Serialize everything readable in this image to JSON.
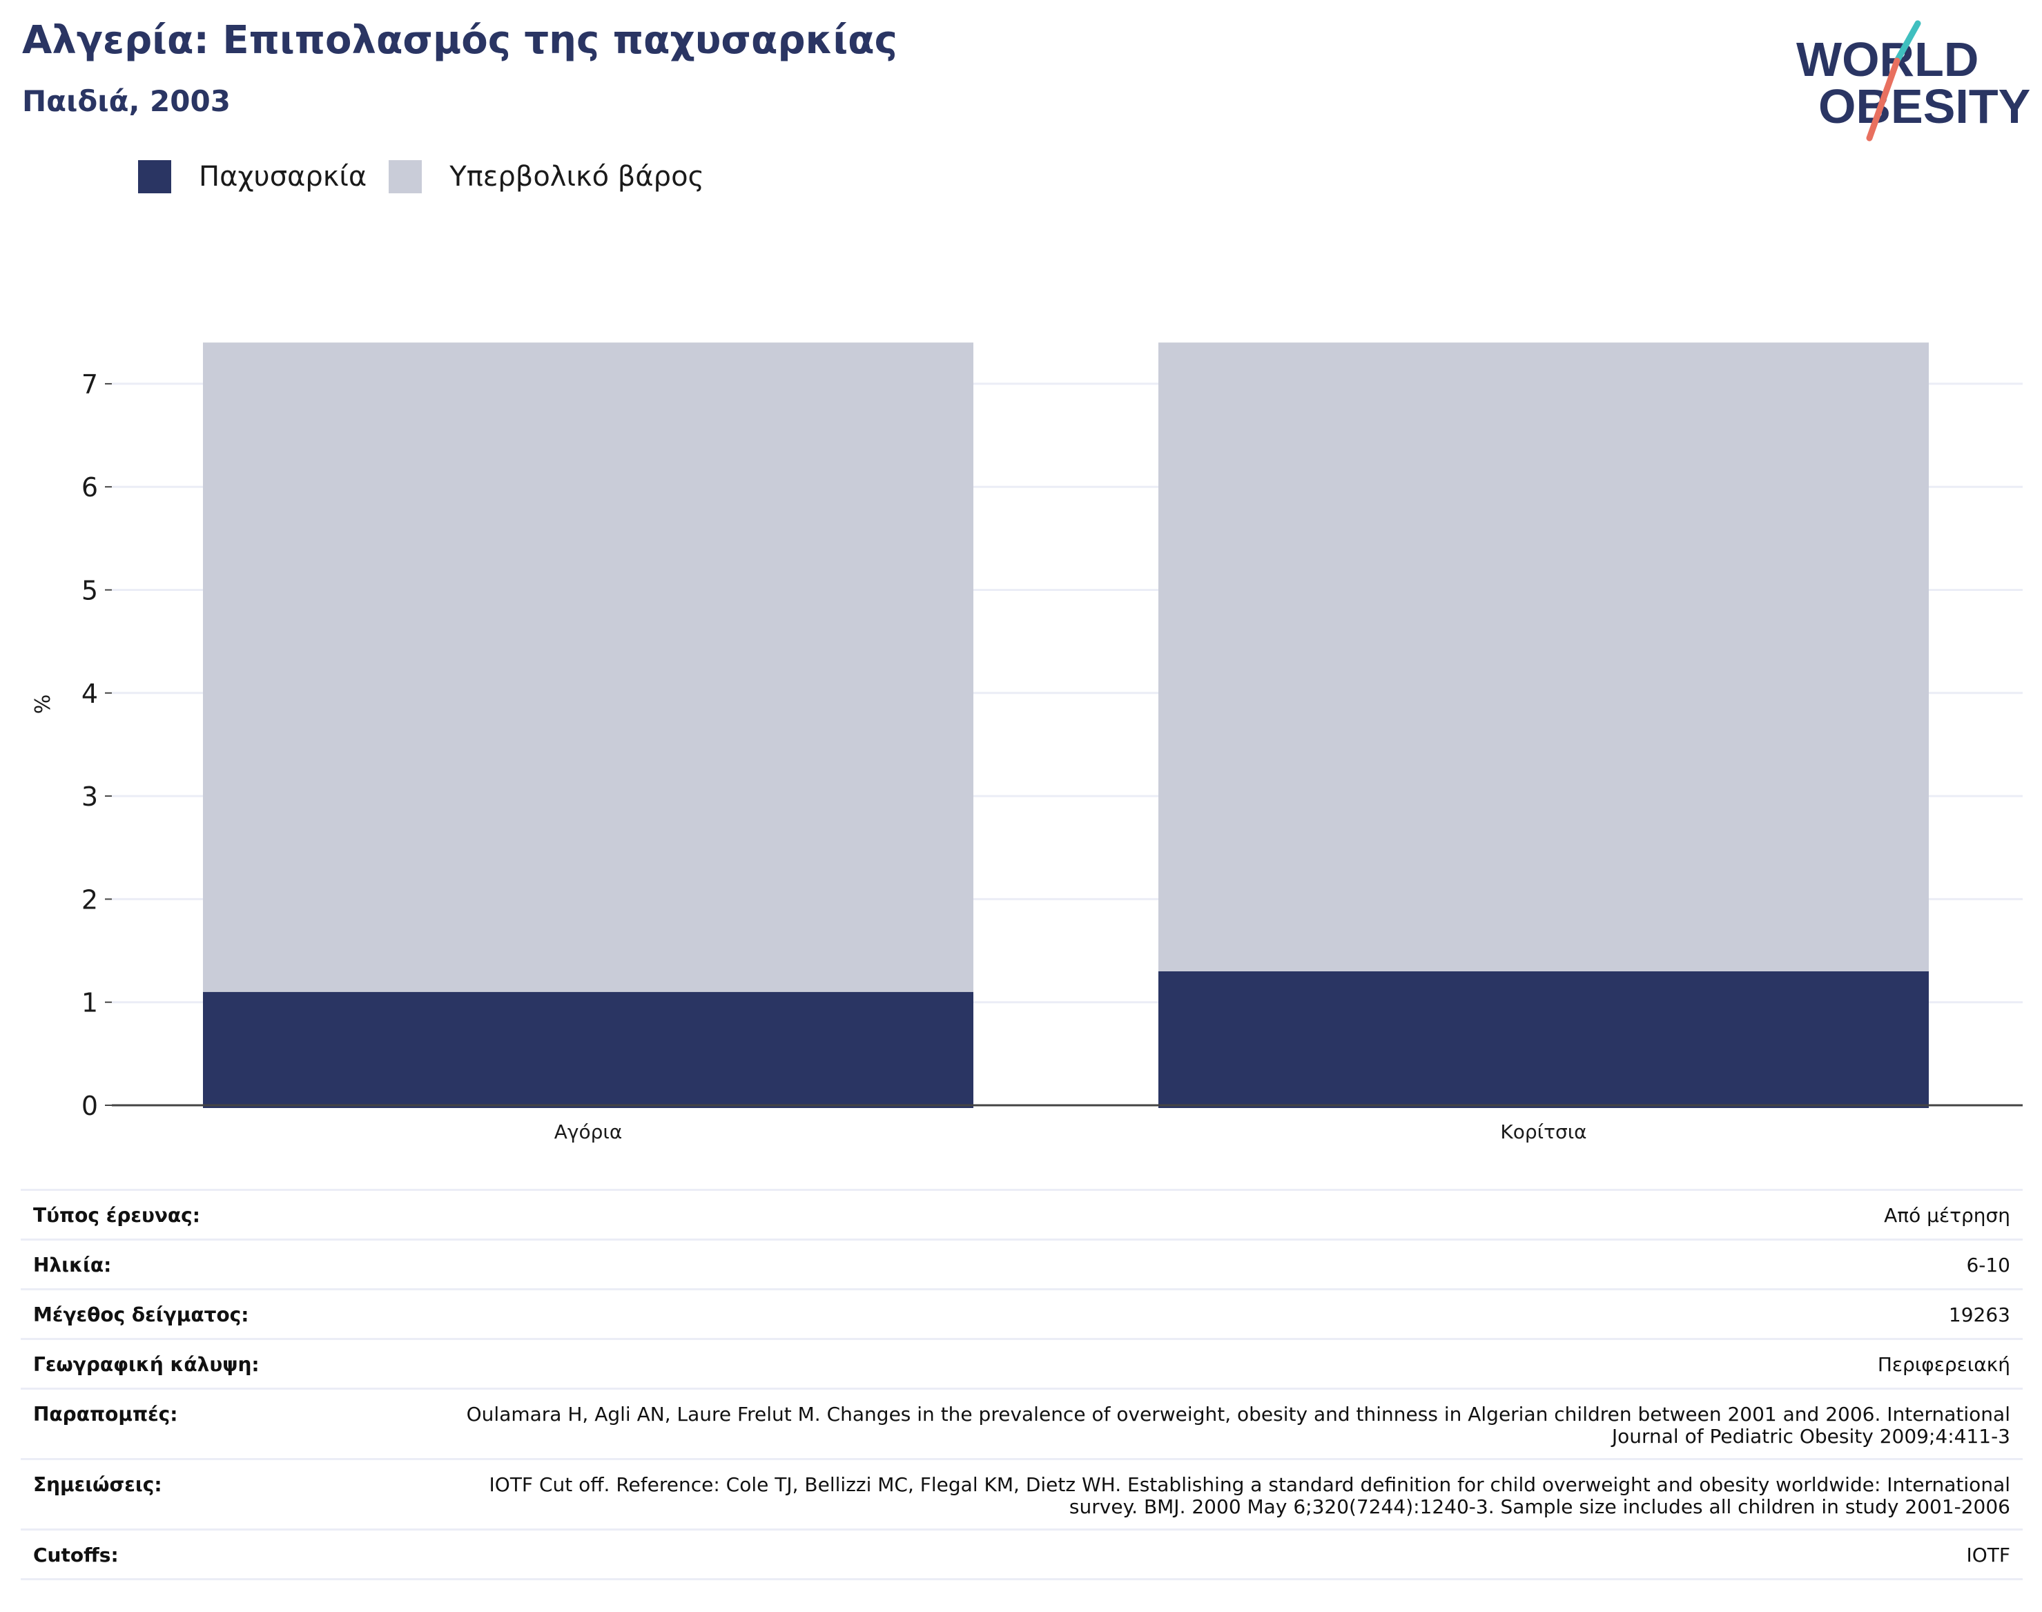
{
  "header": {
    "title": "Αλγερία: Επιπολασμός της παχυσαρκίας",
    "subtitle": "Παιδιά, 2003"
  },
  "logo": {
    "line1": "WORLD",
    "line2": "OBESITY",
    "colors": {
      "text": "#2a3563",
      "slash_top": "#3fbfbf",
      "slash_bottom": "#e8705f"
    }
  },
  "colors": {
    "obesity": "#2a3563",
    "overweight": "#c9ccd8",
    "grid": "#ebedf6",
    "axis": "#444444"
  },
  "chart_data": {
    "type": "bar",
    "stacked": true,
    "categories": [
      "Αγόρια",
      "Κορίτσια"
    ],
    "series": [
      {
        "name": "Παχυσαρκία",
        "values": [
          1.1,
          1.3
        ],
        "color": "#2a3563"
      },
      {
        "name": "Υπερβολικό βάρος",
        "values": [
          6.3,
          6.1
        ],
        "color": "#c9ccd8"
      }
    ],
    "title": "Αλγερία: Επιπολασμός της παχυσαρκίας",
    "subtitle": "Παιδιά, 2003",
    "ylabel": "%",
    "xlabel": "",
    "ylim": [
      0,
      7.4
    ],
    "yticks": [
      0,
      1,
      2,
      3,
      4,
      5,
      6,
      7
    ],
    "grid": true,
    "legend_position": "top-left"
  },
  "details": [
    {
      "label": "Τύπος έρευνας:",
      "value": "Από μέτρηση"
    },
    {
      "label": "Ηλικία:",
      "value": "6-10"
    },
    {
      "label": "Μέγεθος δείγματος:",
      "value": "19263"
    },
    {
      "label": "Γεωγραφική κάλυψη:",
      "value": "Περιφερειακή"
    },
    {
      "label": "Παραπομπές:",
      "value": "Oulamara H, Agli AN, Laure Frelut M. Changes in the prevalence of overweight, obesity and thinness in Algerian children between 2001 and 2006. International Journal of Pediatric Obesity 2009;4:411-3"
    },
    {
      "label": "Σημειώσεις:",
      "value": "IOTF Cut off. Reference: Cole TJ, Bellizzi MC, Flegal KM, Dietz WH. Establishing a standard definition for child overweight and obesity worldwide: International survey. BMJ. 2000 May 6;320(7244):1240-3. Sample size includes all children in study 2001-2006"
    },
    {
      "label": "Cutoffs:",
      "value": "IOTF"
    }
  ]
}
